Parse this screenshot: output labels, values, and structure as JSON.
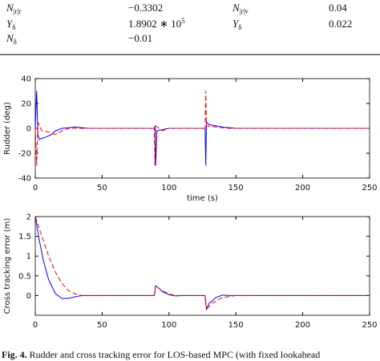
{
  "table": {
    "rows": [
      [
        {
          "symbol": "N",
          "sub": "|r|r"
        },
        "−0.3302",
        {
          "symbol": "N",
          "sub": "|r|v"
        },
        "0.04"
      ],
      [
        {
          "symbol": "Y",
          "sub": "δ"
        },
        {
          "mantissa": "1.8902 ∗ 10",
          "exp": "5"
        },
        {
          "symbol": "Y",
          "sub": "δ"
        },
        "0.022"
      ],
      [
        {
          "symbol": "N",
          "sub": "δ"
        },
        "−0.01"
      ]
    ]
  },
  "chart_data": [
    {
      "type": "line",
      "ylabel": "Rudder (deg)",
      "xlabel": "time (s)",
      "xlim": [
        0,
        250
      ],
      "xticks": [
        0,
        50,
        100,
        150,
        200,
        250
      ],
      "ylim": [
        -40,
        40
      ],
      "yticks": [
        -40,
        -20,
        0,
        20,
        40
      ],
      "series": [
        {
          "color": "#0000ff",
          "dash": false,
          "x": [
            0,
            1,
            2,
            3,
            5,
            8,
            12,
            15,
            20,
            30,
            40,
            89,
            89.5,
            90,
            91,
            95,
            100,
            127,
            127.5,
            128,
            130,
            140,
            150,
            250
          ],
          "values": [
            0,
            30,
            -5,
            -9,
            -8,
            -7,
            -5,
            -2,
            0,
            1,
            0,
            0,
            2,
            -30,
            -2,
            -1,
            0,
            0,
            -30,
            5,
            3,
            1,
            0,
            0
          ]
        },
        {
          "color": "#ff0000",
          "dash": true,
          "x": [
            0,
            1,
            2,
            5,
            10,
            15,
            20,
            25,
            89,
            89.5,
            90,
            95,
            100,
            127,
            127.5,
            128,
            135,
            145,
            250
          ],
          "values": [
            0,
            -30,
            5,
            -2,
            -3,
            -5,
            -2,
            0,
            0,
            -30,
            2,
            -2,
            0,
            0,
            30,
            2,
            1,
            0,
            0
          ]
        }
      ]
    },
    {
      "type": "line",
      "ylabel": "Cross tracking error (m)",
      "xlim": [
        0,
        250
      ],
      "xticks": [
        0,
        50,
        100,
        150,
        200,
        250
      ],
      "ylim": [
        -0.5,
        2
      ],
      "yticks": [
        0,
        0.5,
        1,
        1.5,
        2
      ],
      "series": [
        {
          "color": "#0000ff",
          "dash": false,
          "x": [
            0,
            3,
            6,
            10,
            15,
            20,
            25,
            30,
            35,
            89,
            90,
            92,
            95,
            100,
            105,
            110,
            127,
            128,
            130,
            135,
            140,
            145,
            250
          ],
          "values": [
            2,
            1.4,
            0.9,
            0.4,
            0.05,
            -0.08,
            -0.07,
            -0.03,
            0,
            0,
            0.25,
            0.2,
            0.1,
            0.02,
            -0.01,
            0,
            0,
            -0.35,
            -0.2,
            -0.05,
            0.01,
            0,
            0
          ]
        },
        {
          "color": "#ff0000",
          "dash": true,
          "x": [
            0,
            5,
            10,
            15,
            20,
            25,
            30,
            35,
            89,
            90,
            95,
            100,
            105,
            127,
            128,
            132,
            140,
            150,
            250
          ],
          "values": [
            2,
            1.5,
            1,
            0.6,
            0.3,
            0.12,
            0.04,
            0,
            0,
            0.25,
            0.12,
            0.04,
            0,
            0,
            -0.35,
            -0.2,
            -0.05,
            0,
            0
          ]
        }
      ]
    }
  ],
  "caption": {
    "label": "Fig. 4.",
    "text": "Rudder and cross tracking error for LOS-based MPC (with fixed lookahead"
  }
}
